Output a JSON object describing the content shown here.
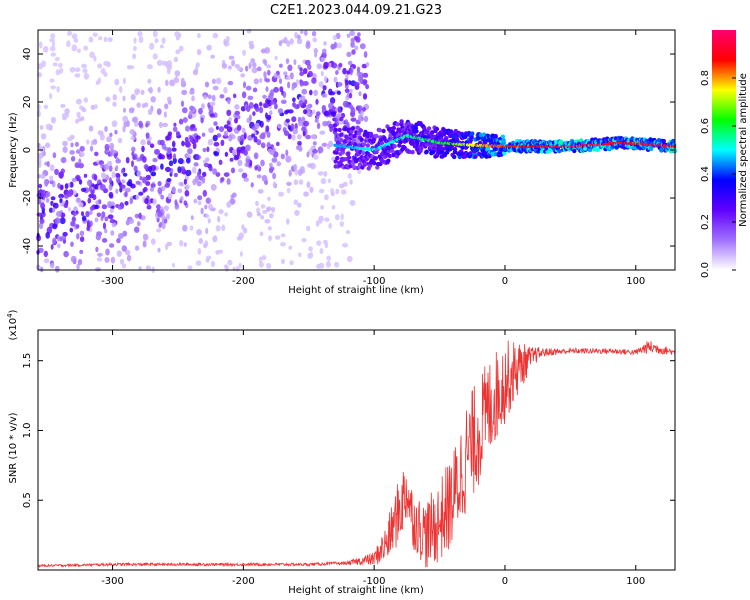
{
  "title": "C2E1.2023.044.09.21.G23",
  "chart_data": [
    {
      "type": "heatmap",
      "xlabel": "Height of straight line (km)",
      "ylabel": "Frequency (Hz)",
      "xlim": [
        -357,
        130
      ],
      "ylim": [
        -50,
        50
      ],
      "x_ticks": [
        -300,
        -200,
        -100,
        0,
        100
      ],
      "y_ticks": [
        -40,
        -20,
        0,
        20,
        40
      ],
      "colorbar": {
        "label": "Normalized spectral amplitude",
        "range": [
          0,
          1
        ],
        "ticks": [
          0.0,
          0.2,
          0.4,
          0.6,
          0.8
        ],
        "colors": [
          "#ffffff",
          "#a070ff",
          "#6000ff",
          "#0000ff",
          "#00ffff",
          "#00ff00",
          "#ffff00",
          "#ff0000",
          "#ff0070"
        ]
      },
      "scatter_region": {
        "x": [
          -357,
          -105
        ],
        "freq": [
          -50,
          50
        ],
        "amplitude": [
          0.0,
          0.35
        ]
      },
      "signal_band": [
        {
          "x": -130,
          "freq": 2,
          "amplitude": 0.45
        },
        {
          "x": -100,
          "freq": 0,
          "amplitude": 0.5
        },
        {
          "x": -75,
          "freq": 6,
          "amplitude": 0.55
        },
        {
          "x": -50,
          "freq": 3,
          "amplitude": 0.6
        },
        {
          "x": -25,
          "freq": 2,
          "amplitude": 0.75
        },
        {
          "x": 0,
          "freq": 1.5,
          "amplitude": 0.85
        },
        {
          "x": 50,
          "freq": 1.5,
          "amplitude": 0.95
        },
        {
          "x": 90,
          "freq": 3,
          "amplitude": 0.9
        },
        {
          "x": 130,
          "freq": 1.5,
          "amplitude": 0.95
        }
      ]
    },
    {
      "type": "line",
      "xlabel": "Height of straight line (km)",
      "ylabel": "SNR (10 * v/v)",
      "y_multiplier": "(x10",
      "y_multiplier_exp": "4",
      "y_multiplier_close": ")",
      "xlim": [
        -357,
        130
      ],
      "ylim": [
        0,
        1.72
      ],
      "x_ticks": [
        -300,
        -200,
        -100,
        0,
        100
      ],
      "y_ticks": [
        0.5,
        1.0,
        1.5
      ],
      "y_tick_labels": [
        "0.5",
        "1.0",
        "1.5"
      ],
      "color": "#ee3333",
      "series": [
        {
          "x": [
            -357,
            -300,
            -200,
            -150,
            -120,
            -100,
            -90,
            -80,
            -75,
            -70,
            -60,
            -50,
            -40,
            -30,
            -20,
            -10,
            0,
            10,
            20,
            25,
            30,
            50,
            80,
            100,
            110,
            130
          ],
          "y": [
            0.03,
            0.04,
            0.04,
            0.04,
            0.05,
            0.08,
            0.2,
            0.45,
            0.58,
            0.35,
            0.25,
            0.35,
            0.5,
            0.8,
            1.0,
            1.2,
            1.35,
            1.45,
            1.52,
            1.55,
            1.56,
            1.57,
            1.57,
            1.56,
            1.6,
            1.56
          ],
          "noise": [
            0.008,
            0.01,
            0.01,
            0.01,
            0.012,
            0.05,
            0.15,
            0.25,
            0.25,
            0.2,
            0.25,
            0.3,
            0.35,
            0.4,
            0.4,
            0.35,
            0.3,
            0.2,
            0.08,
            0.05,
            0.03,
            0.02,
            0.02,
            0.02,
            0.05,
            0.02
          ]
        }
      ]
    }
  ]
}
